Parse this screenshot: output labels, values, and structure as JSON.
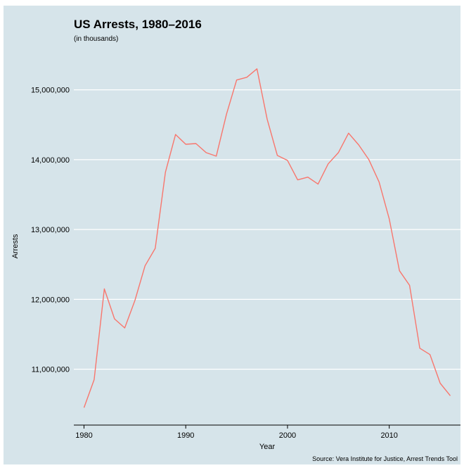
{
  "chart_data": {
    "type": "line",
    "title": "US Arrests, 1980–2016",
    "subtitle": "(in thousands)",
    "xlabel": "Year",
    "ylabel": "Arrests",
    "caption": "Source: Vera Institute for Justice, Arrest Trends Tool",
    "xlim": [
      1979,
      2017
    ],
    "ylim": [
      10200000,
      15500000
    ],
    "xticks": [
      1980,
      1990,
      2000,
      2010
    ],
    "xtick_labels": [
      "1980",
      "1990",
      "2000",
      "2010"
    ],
    "yticks": [
      11000000,
      12000000,
      13000000,
      14000000,
      15000000
    ],
    "ytick_labels": [
      "11,000,000",
      "12,000,000",
      "13,000,000",
      "14,000,000",
      "15,000,000"
    ],
    "grid": "horizontal",
    "line_color": "#f8766d",
    "background_color": "#d6e4ea",
    "x": [
      1980,
      1981,
      1982,
      1983,
      1984,
      1985,
      1986,
      1987,
      1988,
      1989,
      1990,
      1991,
      1992,
      1993,
      1994,
      1995,
      1996,
      1997,
      1998,
      1999,
      2000,
      2001,
      2002,
      2003,
      2004,
      2005,
      2006,
      2007,
      2008,
      2009,
      2010,
      2011,
      2012,
      2013,
      2014,
      2015,
      2016
    ],
    "series": [
      {
        "values": [
          10450000,
          10850000,
          12150000,
          11720000,
          11590000,
          11980000,
          12480000,
          12730000,
          13820000,
          14360000,
          14220000,
          14230000,
          14100000,
          14050000,
          14650000,
          15140000,
          15180000,
          15300000,
          14580000,
          14060000,
          13990000,
          13710000,
          13750000,
          13650000,
          13940000,
          14100000,
          14380000,
          14210000,
          14000000,
          13680000,
          13150000,
          12410000,
          12200000,
          11300000,
          11210000,
          10800000,
          10620000
        ]
      }
    ]
  }
}
